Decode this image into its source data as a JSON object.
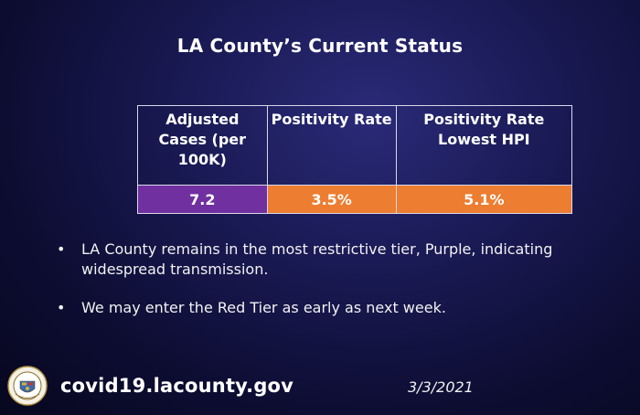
{
  "slide": {
    "title": "LA County’s Current Status"
  },
  "table": {
    "headers": [
      "Adjusted Cases (per 100K)",
      "Positivity Rate",
      "Positivity Rate Lowest HPI"
    ],
    "values": [
      "7.2",
      "3.5%",
      "5.1%"
    ],
    "value_colors": [
      "#7030a0",
      "#ed7d31",
      "#ed7d31"
    ]
  },
  "bullets": [
    "LA County remains in the most restrictive tier, Purple, indicating widespread transmission.",
    "We may enter the Red Tier as early as next week."
  ],
  "footer": {
    "url": "covid19.lacounty.gov",
    "date": "3/3/2021",
    "logo": "county-seal-icon"
  }
}
